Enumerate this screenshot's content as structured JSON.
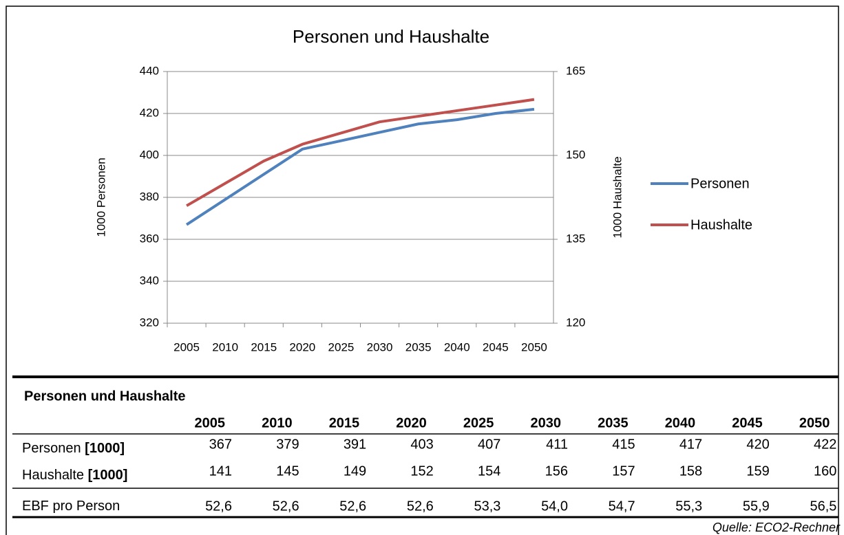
{
  "chart_data": {
    "type": "line",
    "title": "Personen und Haushalte",
    "y_label": "1000 Personen",
    "y2_label": "1000 Haushalte",
    "categories": [
      "2005",
      "2010",
      "2015",
      "2020",
      "2025",
      "2030",
      "2035",
      "2040",
      "2045",
      "2050"
    ],
    "series": [
      {
        "name": "Personen",
        "color": "#4f81bd",
        "values": [
          367,
          379,
          391,
          403,
          407,
          411,
          415,
          417,
          420,
          422
        ]
      },
      {
        "name": "Haushalte",
        "color": "#c0504d",
        "axis": "y2",
        "values": [
          141,
          145,
          149,
          152,
          154,
          156,
          157,
          158,
          159,
          160
        ]
      }
    ],
    "ylim": [
      320,
      440
    ],
    "yticks": [
      320,
      340,
      360,
      380,
      400,
      420,
      440
    ],
    "y2lim": [
      120,
      165
    ],
    "y2ticks": [
      120,
      135,
      150,
      165
    ],
    "grid": true,
    "legend": "right"
  },
  "table": {
    "title": "Personen und Haushalte",
    "columns": [
      "2005",
      "2010",
      "2015",
      "2020",
      "2025",
      "2030",
      "2035",
      "2040",
      "2045",
      "2050"
    ],
    "rows": [
      {
        "label": "Personen ",
        "unit": "[1000]",
        "values": [
          "367",
          "379",
          "391",
          "403",
          "407",
          "411",
          "415",
          "417",
          "420",
          "422"
        ]
      },
      {
        "label": "Haushalte ",
        "unit": "[1000]",
        "values": [
          "141",
          "145",
          "149",
          "152",
          "154",
          "156",
          "157",
          "158",
          "159",
          "160"
        ]
      },
      {
        "label": "EBF pro Person",
        "values": [
          "52,6",
          "52,6",
          "52,6",
          "52,6",
          "53,3",
          "54,0",
          "54,7",
          "55,3",
          "55,9",
          "56,5"
        ]
      }
    ]
  },
  "source": "Quelle: ECO2-Rechner"
}
